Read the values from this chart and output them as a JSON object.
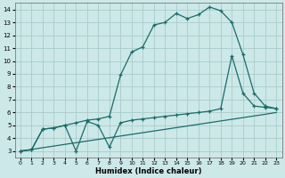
{
  "background_color": "#cde8e8",
  "grid_color": "#aacccc",
  "line_color": "#1a6b6b",
  "xlabel": "Humidex (Indice chaleur)",
  "xlim": [
    -0.5,
    23.5
  ],
  "ylim": [
    2.5,
    14.5
  ],
  "xticks": [
    0,
    1,
    2,
    3,
    4,
    5,
    6,
    7,
    8,
    9,
    10,
    11,
    12,
    13,
    14,
    15,
    16,
    17,
    18,
    19,
    20,
    21,
    22,
    23
  ],
  "yticks": [
    3,
    4,
    5,
    6,
    7,
    8,
    9,
    10,
    11,
    12,
    13,
    14
  ],
  "line1_x": [
    0,
    1,
    2,
    3,
    4,
    5,
    6,
    7,
    8,
    9,
    10,
    11,
    12,
    13,
    14,
    15,
    16,
    17,
    18,
    19,
    20,
    21,
    22,
    23
  ],
  "line1_y": [
    3.0,
    3.13,
    3.26,
    3.39,
    3.52,
    3.65,
    3.78,
    3.91,
    4.04,
    4.17,
    4.3,
    4.43,
    4.56,
    4.69,
    4.82,
    4.95,
    5.08,
    5.21,
    5.34,
    5.47,
    5.6,
    5.73,
    5.86,
    6.0
  ],
  "line2_x": [
    0,
    1,
    2,
    3,
    4,
    5,
    6,
    7,
    8,
    9,
    10,
    11,
    12,
    13,
    14,
    15,
    16,
    17,
    18,
    19,
    20,
    21,
    22,
    23
  ],
  "line2_y": [
    3.0,
    3.1,
    4.7,
    4.8,
    5.0,
    5.2,
    5.4,
    5.5,
    5.7,
    8.9,
    10.7,
    11.1,
    12.8,
    13.0,
    13.7,
    13.3,
    13.6,
    14.2,
    13.9,
    13.0,
    10.5,
    7.5,
    6.5,
    6.3
  ],
  "line3_x": [
    0,
    1,
    2,
    3,
    4,
    5,
    6,
    7,
    8,
    9,
    10,
    11,
    12,
    13,
    14,
    15,
    16,
    17,
    18,
    19,
    20,
    21,
    22,
    23
  ],
  "line3_y": [
    3.0,
    3.1,
    4.7,
    4.8,
    5.0,
    3.0,
    5.3,
    5.0,
    3.3,
    5.2,
    5.4,
    5.5,
    5.6,
    5.7,
    5.8,
    5.9,
    6.0,
    6.1,
    6.3,
    10.4,
    7.5,
    6.5,
    6.4,
    6.3
  ]
}
